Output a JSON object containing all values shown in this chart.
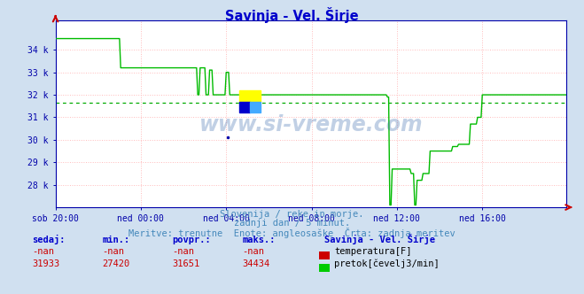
{
  "title": "Savinja - Vel. Širje",
  "title_color": "#0000cc",
  "bg_color": "#d0e0f0",
  "plot_bg_color": "#ffffff",
  "grid_color": "#ffbbbb",
  "avg_line_color": "#00aa00",
  "x_axis_color": "#0000aa",
  "y_axis_color": "#0000aa",
  "arrow_color": "#cc0000",
  "watermark_text": "www.si-vreme.com",
  "watermark_color": "#3366aa",
  "subtitle_lines": [
    "Slovenija / reke in morje.",
    "zadnji dan / 5 minut.",
    "Meritve: trenutne  Enote: angleosaške  Črta: zadnja meritev"
  ],
  "subtitle_color": "#4488bb",
  "table_header_color": "#0000cc",
  "table_value_color": "#cc0000",
  "table_label": "Savinja - Vel. Širje",
  "columns": [
    "sedaj:",
    "min.:",
    "povpr.:",
    "maks.:"
  ],
  "row1": [
    "-nan",
    "-nan",
    "-nan",
    "-nan"
  ],
  "row2": [
    "31933",
    "27420",
    "31651",
    "34434"
  ],
  "legend_temp_color": "#cc0000",
  "legend_flow_color": "#00cc00",
  "legend_temp_label": "temperatura[F]",
  "legend_flow_label": "pretok[čevelj3/min]",
  "y_min": 27000,
  "y_max": 35300,
  "y_ticks": [
    28000,
    29000,
    30000,
    31000,
    32000,
    33000,
    34000
  ],
  "y_tick_labels": [
    "28 k",
    "29 k",
    "30 k",
    "31 k",
    "32 k",
    "33 k",
    "34 k"
  ],
  "avg_value": 31651,
  "flow_color": "#00bb00",
  "flow_linewidth": 1.0,
  "logo_yellow": "#ffff00",
  "logo_blue": "#0000cc",
  "logo_cyan": "#44aaff"
}
